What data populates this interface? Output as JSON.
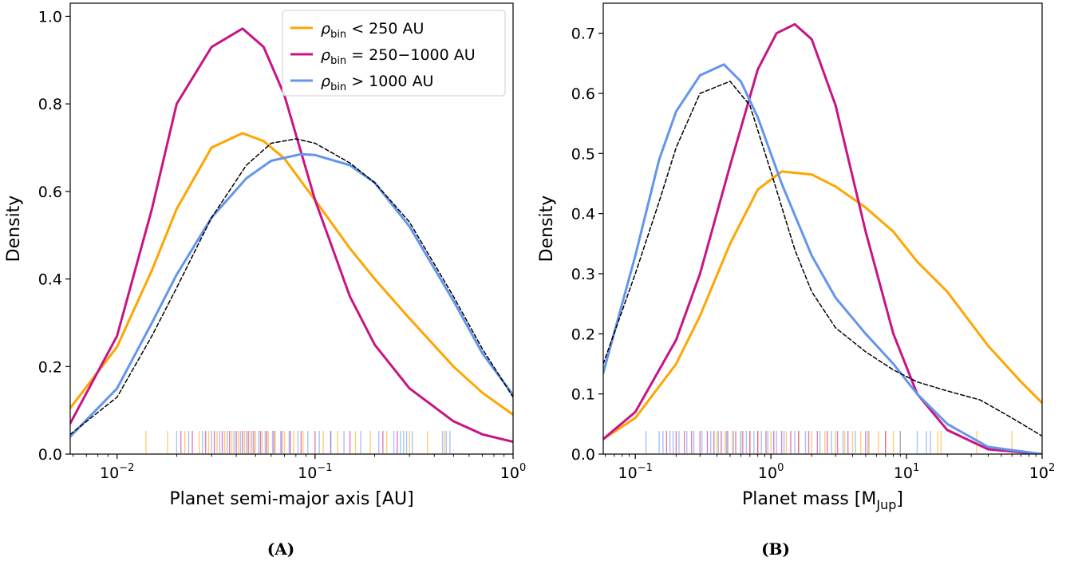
{
  "colors": {
    "orange": "#ffa500",
    "magenta": "#c71585",
    "blue": "#6495ed",
    "black": "#000000"
  },
  "chart_data": [
    {
      "type": "line",
      "panel": "(A)",
      "xlabel": "Planet semi-major axis [AU]",
      "ylabel": "Density",
      "x_scale": "log",
      "xlim": [
        0.0058,
        1.0
      ],
      "ylim": [
        0,
        1.03
      ],
      "x_ticks": [
        {
          "value": 0.01,
          "base": "10",
          "exp": "−2"
        },
        {
          "value": 0.1,
          "base": "10",
          "exp": "−1"
        },
        {
          "value": 1,
          "base": "10",
          "exp": "0"
        }
      ],
      "y_ticks": [
        {
          "value": 0.0,
          "label": "0.0"
        },
        {
          "value": 0.2,
          "label": "0.2"
        },
        {
          "value": 0.4,
          "label": "0.4"
        },
        {
          "value": 0.6,
          "label": "0.6"
        },
        {
          "value": 0.8,
          "label": "0.8"
        },
        {
          "value": 1.0,
          "label": "1.0"
        }
      ],
      "legend": {
        "placement": "upper right",
        "entries": [
          {
            "sym": "ρ",
            "sub": "bin",
            "rest": " < 250 AU",
            "color": "#ffa500"
          },
          {
            "sym": "ρ",
            "sub": "bin",
            "rest": " = 250−1000 AU",
            "color": "#c71585"
          },
          {
            "sym": "ρ",
            "sub": "bin",
            "rest": " > 1000 AU",
            "color": "#6495ed"
          }
        ]
      },
      "series": [
        {
          "color": "#ffa500",
          "style": "solid",
          "x": [
            0.0058,
            0.01,
            0.015,
            0.02,
            0.03,
            0.043,
            0.055,
            0.07,
            0.1,
            0.15,
            0.2,
            0.3,
            0.5,
            0.7,
            1.0
          ],
          "y": [
            0.105,
            0.245,
            0.42,
            0.56,
            0.7,
            0.733,
            0.715,
            0.675,
            0.58,
            0.47,
            0.4,
            0.31,
            0.2,
            0.14,
            0.09
          ]
        },
        {
          "color": "#c71585",
          "style": "solid",
          "x": [
            0.0058,
            0.01,
            0.015,
            0.02,
            0.03,
            0.043,
            0.055,
            0.07,
            0.1,
            0.15,
            0.2,
            0.3,
            0.5,
            0.7,
            1.0
          ],
          "y": [
            0.07,
            0.27,
            0.56,
            0.8,
            0.93,
            0.972,
            0.93,
            0.82,
            0.58,
            0.36,
            0.25,
            0.15,
            0.075,
            0.045,
            0.028
          ]
        },
        {
          "color": "#6495ed",
          "style": "solid",
          "x": [
            0.0058,
            0.01,
            0.015,
            0.02,
            0.03,
            0.045,
            0.06,
            0.085,
            0.1,
            0.15,
            0.2,
            0.3,
            0.5,
            0.7,
            1.0
          ],
          "y": [
            0.04,
            0.15,
            0.3,
            0.41,
            0.54,
            0.63,
            0.67,
            0.685,
            0.683,
            0.66,
            0.62,
            0.52,
            0.35,
            0.23,
            0.135
          ]
        },
        {
          "color": "#000000",
          "style": "dashed",
          "x": [
            0.0058,
            0.01,
            0.015,
            0.02,
            0.03,
            0.045,
            0.06,
            0.08,
            0.1,
            0.15,
            0.2,
            0.3,
            0.5,
            0.7,
            1.0
          ],
          "y": [
            0.045,
            0.13,
            0.27,
            0.38,
            0.54,
            0.66,
            0.71,
            0.72,
            0.71,
            0.665,
            0.62,
            0.53,
            0.36,
            0.24,
            0.13
          ]
        }
      ],
      "rug": [
        {
          "color": "#ffa500",
          "x": [
            0.014,
            0.018,
            0.022,
            0.026,
            0.029,
            0.032,
            0.035,
            0.038,
            0.041,
            0.044,
            0.047,
            0.05,
            0.054,
            0.058,
            0.063,
            0.07,
            0.078,
            0.087,
            0.11,
            0.13,
            0.16,
            0.19,
            0.23,
            0.3,
            0.37,
            0.45
          ]
        },
        {
          "color": "#c71585",
          "x": [
            0.021,
            0.024,
            0.028,
            0.031,
            0.034,
            0.037,
            0.04,
            0.043,
            0.046,
            0.049,
            0.053,
            0.057,
            0.062,
            0.068,
            0.075,
            0.085,
            0.1,
            0.12,
            0.15,
            0.22,
            0.26
          ]
        },
        {
          "color": "#6495ed",
          "x": [
            0.02,
            0.023,
            0.027,
            0.03,
            0.033,
            0.036,
            0.039,
            0.042,
            0.045,
            0.048,
            0.052,
            0.056,
            0.061,
            0.067,
            0.074,
            0.082,
            0.092,
            0.105,
            0.12,
            0.14,
            0.17,
            0.21,
            0.25,
            0.27,
            0.28,
            0.29,
            0.31,
            0.44,
            0.46,
            0.48
          ]
        }
      ]
    },
    {
      "type": "line",
      "panel": "(B)",
      "xlabel_main": "Planet mass [M",
      "xlabel_sub": "Jup",
      "xlabel_end": "]",
      "ylabel": "Density",
      "x_scale": "log",
      "xlim": [
        0.058,
        100
      ],
      "ylim": [
        0,
        0.75
      ],
      "x_ticks": [
        {
          "value": 0.1,
          "base": "10",
          "exp": "−1"
        },
        {
          "value": 1,
          "base": "10",
          "exp": "0"
        },
        {
          "value": 10,
          "base": "10",
          "exp": "1"
        },
        {
          "value": 100,
          "base": "10",
          "exp": "2"
        }
      ],
      "y_ticks": [
        {
          "value": 0.0,
          "label": "0.0"
        },
        {
          "value": 0.1,
          "label": "0.1"
        },
        {
          "value": 0.2,
          "label": "0.2"
        },
        {
          "value": 0.3,
          "label": "0.3"
        },
        {
          "value": 0.4,
          "label": "0.4"
        },
        {
          "value": 0.5,
          "label": "0.5"
        },
        {
          "value": 0.6,
          "label": "0.6"
        },
        {
          "value": 0.7,
          "label": "0.7"
        }
      ],
      "series": [
        {
          "color": "#ffa500",
          "style": "solid",
          "x": [
            0.058,
            0.1,
            0.2,
            0.3,
            0.5,
            0.8,
            1.2,
            2,
            3,
            5,
            8,
            12,
            20,
            40,
            70,
            100
          ],
          "y": [
            0.025,
            0.06,
            0.15,
            0.23,
            0.35,
            0.44,
            0.47,
            0.465,
            0.445,
            0.41,
            0.37,
            0.32,
            0.27,
            0.18,
            0.12,
            0.085
          ]
        },
        {
          "color": "#c71585",
          "style": "solid",
          "x": [
            0.058,
            0.1,
            0.2,
            0.3,
            0.5,
            0.8,
            1.1,
            1.5,
            2,
            3,
            5,
            8,
            12,
            20,
            40,
            100
          ],
          "y": [
            0.025,
            0.07,
            0.19,
            0.3,
            0.48,
            0.64,
            0.7,
            0.715,
            0.69,
            0.58,
            0.37,
            0.2,
            0.1,
            0.04,
            0.008,
            0.0
          ]
        },
        {
          "color": "#6495ed",
          "style": "solid",
          "x": [
            0.058,
            0.1,
            0.15,
            0.2,
            0.3,
            0.45,
            0.6,
            0.8,
            1.2,
            2,
            3,
            5,
            8,
            12,
            20,
            40,
            100
          ],
          "y": [
            0.135,
            0.33,
            0.49,
            0.57,
            0.63,
            0.648,
            0.62,
            0.56,
            0.45,
            0.33,
            0.26,
            0.2,
            0.15,
            0.1,
            0.05,
            0.012,
            0.0
          ]
        },
        {
          "color": "#000000",
          "style": "dashed",
          "x": [
            0.058,
            0.1,
            0.15,
            0.2,
            0.3,
            0.5,
            0.7,
            1.0,
            1.5,
            2,
            3,
            5,
            8,
            12,
            20,
            35,
            60,
            100
          ],
          "y": [
            0.15,
            0.3,
            0.42,
            0.51,
            0.6,
            0.62,
            0.58,
            0.47,
            0.34,
            0.27,
            0.21,
            0.17,
            0.14,
            0.12,
            0.105,
            0.09,
            0.06,
            0.03
          ]
        }
      ],
      "rug": [
        {
          "color": "#ffa500",
          "x": [
            0.4,
            0.46,
            0.52,
            0.6,
            0.7,
            0.8,
            1.0,
            1.3,
            1.6,
            2.0,
            2.5,
            3.0,
            3.5,
            4.0,
            4.6,
            5.3,
            6.2,
            7.0,
            8.0,
            9.0,
            17,
            18,
            33,
            60
          ]
        },
        {
          "color": "#c71585",
          "x": [
            0.17,
            0.2,
            0.23,
            0.26,
            0.3,
            0.34,
            0.38,
            0.43,
            0.48,
            0.55,
            0.62,
            0.7,
            0.8,
            0.92,
            1.05,
            1.2,
            1.4,
            1.6,
            1.9,
            2.2,
            2.6,
            3.1,
            3.7,
            5.0,
            7.0
          ]
        },
        {
          "color": "#6495ed",
          "x": [
            0.12,
            0.15,
            0.16,
            0.18,
            0.19,
            0.21,
            0.24,
            0.27,
            0.31,
            0.36,
            0.41,
            0.47,
            0.53,
            0.6,
            0.66,
            0.75,
            0.85,
            0.95,
            1.1,
            1.25,
            1.5,
            1.8,
            2.3,
            2.8,
            3.4,
            4.2,
            5.2,
            9.0,
            12,
            14,
            15
          ]
        }
      ]
    }
  ]
}
